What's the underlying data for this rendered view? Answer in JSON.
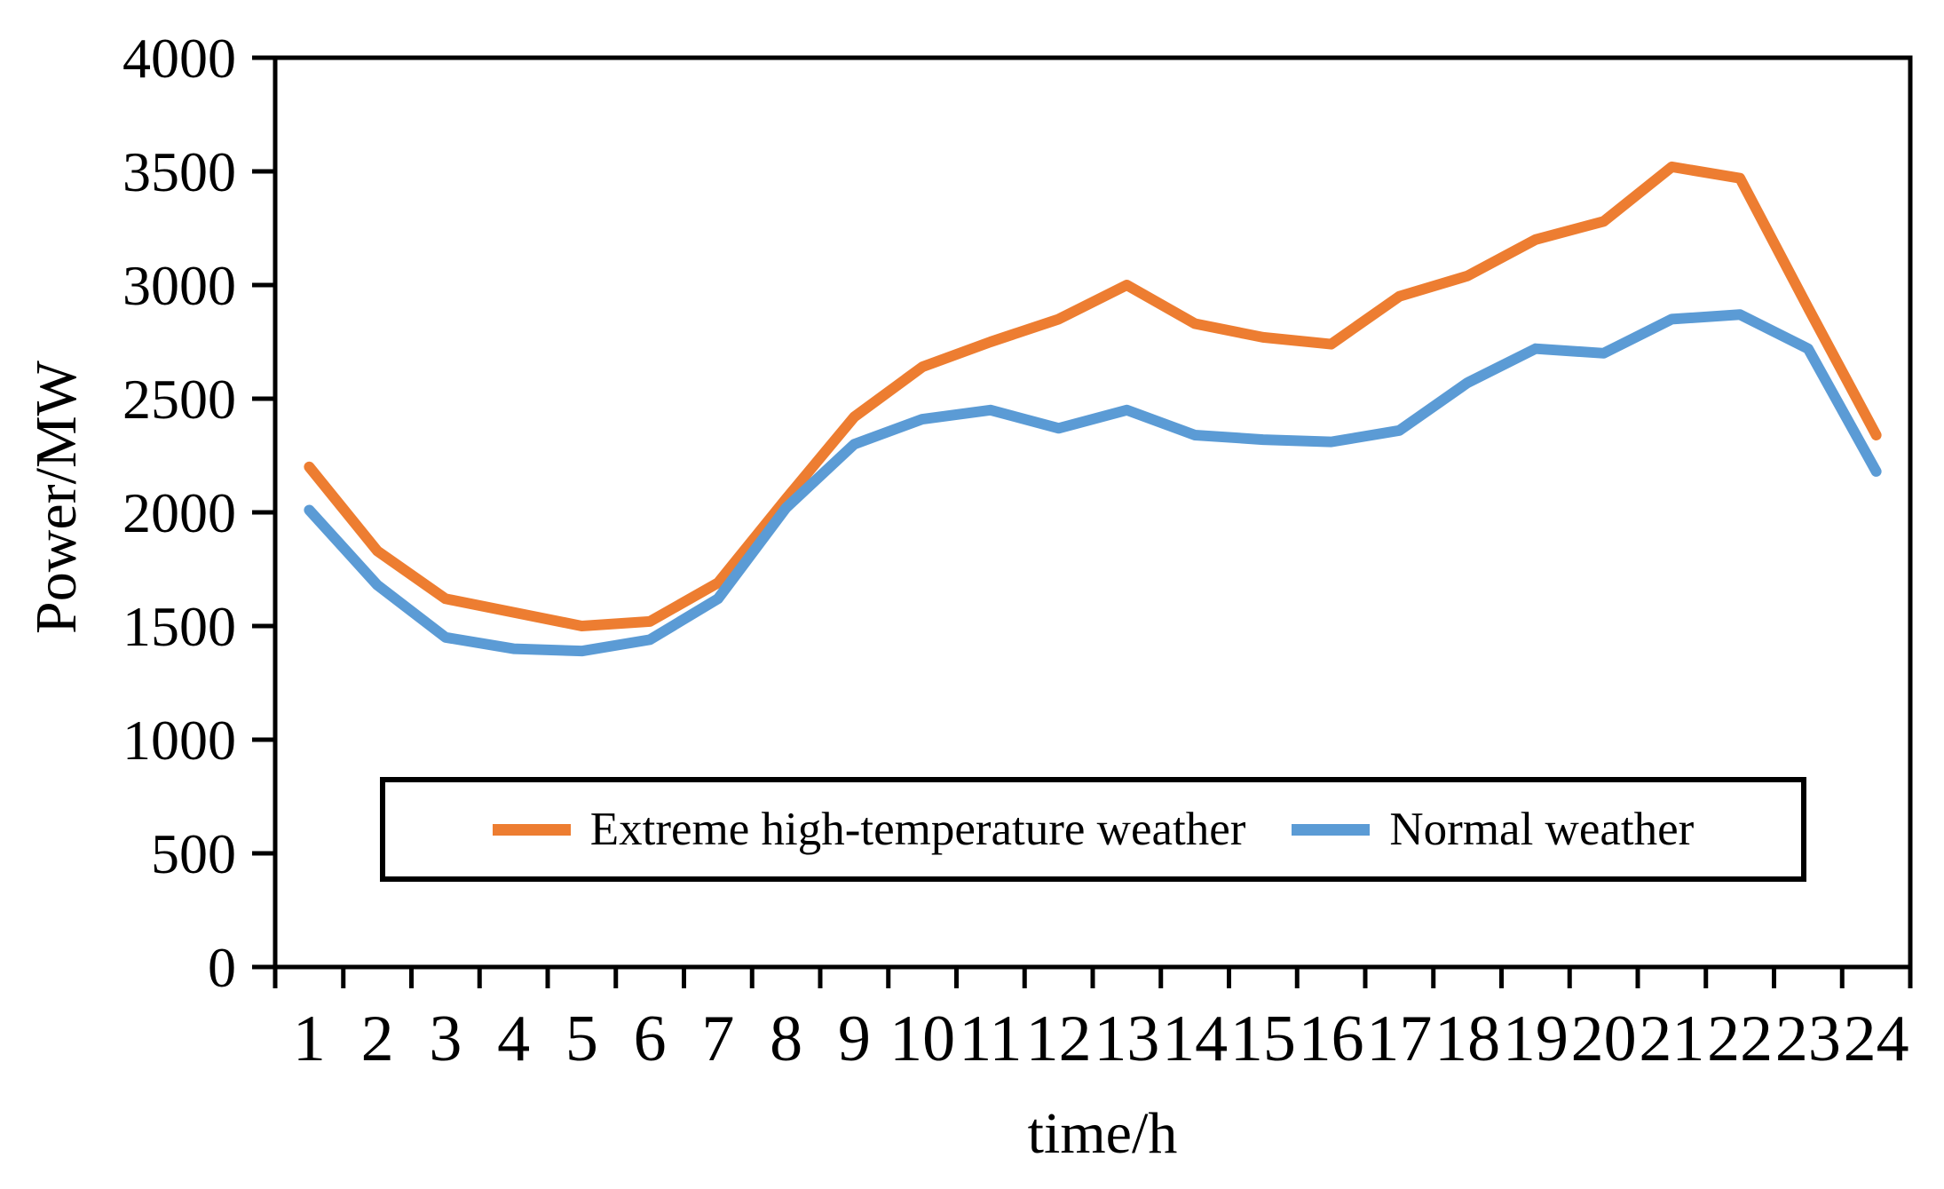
{
  "figure": {
    "title": "",
    "y_axis_title": "Power/MW",
    "x_axis_title": "time/h",
    "background_color": "#ffffff",
    "axis_color": "#000000"
  },
  "legend": {
    "items": [
      {
        "label": "Extreme high-temperature weather",
        "color": "#ED7D31"
      },
      {
        "label": "Normal weather",
        "color": "#5B9BD5"
      }
    ]
  },
  "chart_data": {
    "type": "line",
    "title": "",
    "xlabel": "time/h",
    "ylabel": "Power/MW",
    "x": [
      1,
      2,
      3,
      4,
      5,
      6,
      7,
      8,
      9,
      10,
      11,
      12,
      13,
      14,
      15,
      16,
      17,
      18,
      19,
      20,
      21,
      22,
      23,
      24
    ],
    "x_tick_labels": [
      "1",
      "2",
      "3",
      "4",
      "5",
      "6",
      "7",
      "8",
      "9",
      "10",
      "11",
      "12",
      "13",
      "14",
      "15",
      "16",
      "17",
      "18",
      "19",
      "20",
      "21",
      "22",
      "23",
      "24"
    ],
    "ylim": [
      0,
      4000
    ],
    "y_tick_step": 500,
    "y_tick_labels": [
      "0",
      "500",
      "1000",
      "1500",
      "2000",
      "2500",
      "3000",
      "3500",
      "4000"
    ],
    "grid": false,
    "legend_position": "inside-bottom-center",
    "series": [
      {
        "name": "Extreme high-temperature weather",
        "color": "#ED7D31",
        "values": [
          2200,
          1830,
          1620,
          1560,
          1500,
          1520,
          1690,
          2060,
          2420,
          2640,
          2750,
          2850,
          3000,
          2830,
          2770,
          2740,
          2950,
          3040,
          3200,
          3280,
          3520,
          3470,
          2900,
          2340
        ]
      },
      {
        "name": "Normal weather",
        "color": "#5B9BD5",
        "values": [
          2010,
          1680,
          1450,
          1400,
          1390,
          1440,
          1620,
          2020,
          2300,
          2410,
          2450,
          2370,
          2450,
          2340,
          2320,
          2310,
          2360,
          2570,
          2720,
          2700,
          2850,
          2870,
          2720,
          2180
        ]
      }
    ]
  }
}
